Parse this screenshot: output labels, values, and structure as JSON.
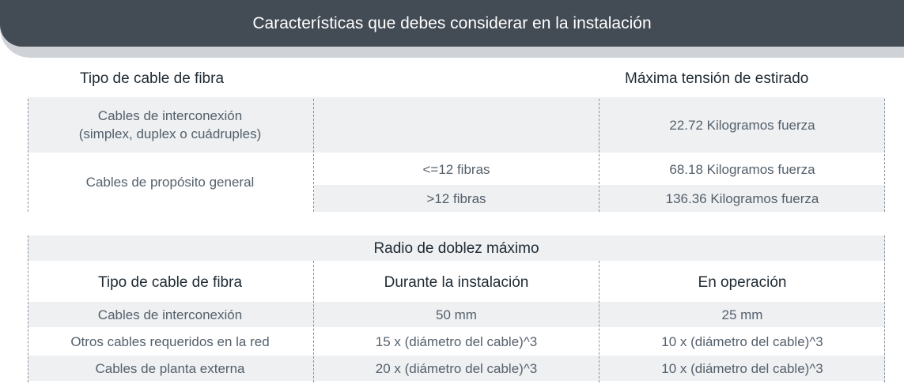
{
  "banner": {
    "title": "Características que debes considerar en la instalación"
  },
  "tension_table": {
    "col_type_header": "Tipo de cable de fibra",
    "col_tension_header": "Máxima tensión de estirado",
    "rows": [
      {
        "type": "Cables de interconexión\n(simplex, duplex o cuádruples)",
        "fibers": "",
        "tension": "22.72 Kilogramos fuerza"
      },
      {
        "type": "Cables de propósito general",
        "fibers": "<=12 fibras",
        "tension": "68.18 Kilogramos fuerza"
      },
      {
        "type": "",
        "fibers": ">12 fibras",
        "tension": "136.36 Kilogramos fuerza"
      }
    ]
  },
  "bend_table": {
    "title": "Radio de doblez máximo",
    "headers": [
      "Tipo de cable de fibra",
      "Durante la instalación",
      "En operación"
    ],
    "rows": [
      [
        "Cables de interconexión",
        "50 mm",
        "25 mm"
      ],
      [
        "Otros cables requeridos en la red",
        "15 x (diámetro del cable)^3",
        "10 x (diámetro del cable)^3"
      ],
      [
        "Cables de planta externa",
        "20 x (diámetro del cable)^3",
        "10 x (diámetro del cable)^3"
      ]
    ]
  }
}
